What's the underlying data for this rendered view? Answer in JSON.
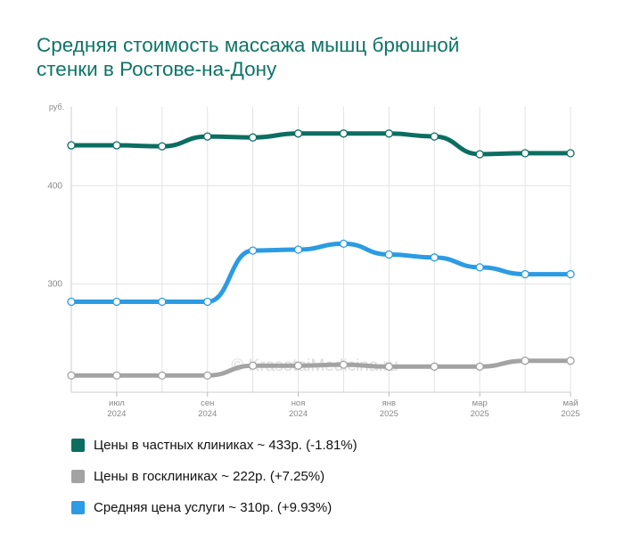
{
  "title": {
    "line1": "Средняя стоимость массажа мышц брюшной",
    "line2": "стенки в Ростове-на-Дону"
  },
  "watermark": "© KrasotaiMedicina.ru",
  "chart_data": {
    "type": "line",
    "ylabel": "руб.",
    "ylim": [
      190,
      480
    ],
    "yticks": [
      {
        "value": 300,
        "label": "300"
      },
      {
        "value": 400,
        "label": "400"
      }
    ],
    "grid": true,
    "legend_placement": "bottom",
    "x_tick_labels": [
      {
        "index": 1,
        "month": "июл",
        "year": "2024"
      },
      {
        "index": 3,
        "month": "сен",
        "year": "2024"
      },
      {
        "index": 5,
        "month": "ноя",
        "year": "2024"
      },
      {
        "index": 7,
        "month": "янв",
        "year": "2025"
      },
      {
        "index": 9,
        "month": "мар",
        "year": "2025"
      },
      {
        "index": 11,
        "month": "май",
        "year": "2025"
      }
    ],
    "series": [
      {
        "name": "Цены в частных клиниках",
        "color": "#0b6e61",
        "values": [
          441,
          441,
          440,
          450,
          449,
          453,
          453,
          453,
          450,
          432,
          433,
          433
        ]
      },
      {
        "name": "Средняя цена услуги",
        "color": "#2b9be3",
        "values": [
          282,
          282,
          282,
          282,
          334,
          335,
          341,
          330,
          327,
          317,
          310,
          310
        ]
      },
      {
        "name": "Цены в госклиниках",
        "color": "#a3a3a3",
        "values": [
          207,
          207,
          207,
          207,
          217,
          217,
          218,
          216,
          216,
          216,
          222,
          222
        ]
      }
    ]
  },
  "legend": [
    {
      "text": "Цены в частных клиниках ~ 433р. (-1.81%)",
      "color": "#0b6e61"
    },
    {
      "text": "Цены в госклиниках ~ 222р. (+7.25%)",
      "color": "#a3a3a3"
    },
    {
      "text": "Средняя цена услуги ~ 310р. (+9.93%)",
      "color": "#2b9be3"
    }
  ]
}
